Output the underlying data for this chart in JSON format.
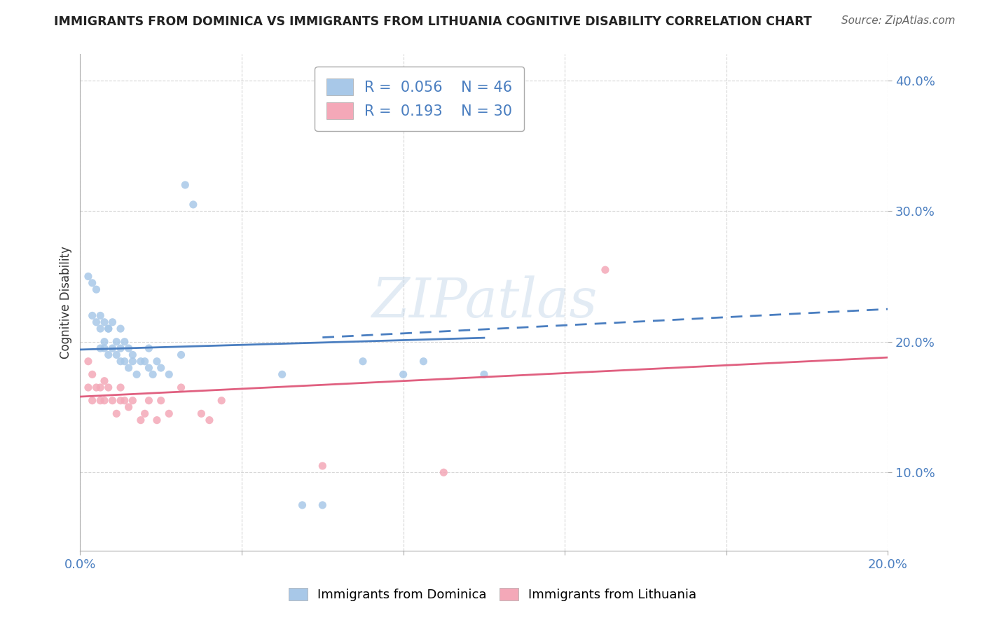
{
  "title": "IMMIGRANTS FROM DOMINICA VS IMMIGRANTS FROM LITHUANIA COGNITIVE DISABILITY CORRELATION CHART",
  "source": "Source: ZipAtlas.com",
  "ylabel": "Cognitive Disability",
  "xlim": [
    0.0,
    0.2
  ],
  "ylim": [
    0.04,
    0.42
  ],
  "xtick_positions": [
    0.0,
    0.04,
    0.08,
    0.12,
    0.16,
    0.2
  ],
  "ytick_positions": [
    0.1,
    0.2,
    0.3,
    0.4
  ],
  "R_dominica": 0.056,
  "N_dominica": 46,
  "R_lithuania": 0.193,
  "N_lithuania": 30,
  "color_dominica": "#a8c8e8",
  "color_lithuania": "#f4a8b8",
  "trendline_dominica": "#4a7ec0",
  "trendline_lithuania": "#e06080",
  "background_color": "#ffffff",
  "grid_color": "#cccccc",
  "watermark": "ZIPatlas",
  "dominica_points_x": [
    0.002,
    0.003,
    0.003,
    0.004,
    0.004,
    0.005,
    0.005,
    0.005,
    0.006,
    0.006,
    0.006,
    0.007,
    0.007,
    0.007,
    0.008,
    0.008,
    0.009,
    0.009,
    0.01,
    0.01,
    0.01,
    0.011,
    0.011,
    0.012,
    0.012,
    0.013,
    0.013,
    0.014,
    0.015,
    0.016,
    0.017,
    0.017,
    0.018,
    0.019,
    0.02,
    0.022,
    0.025,
    0.026,
    0.028,
    0.05,
    0.055,
    0.06,
    0.07,
    0.08,
    0.085,
    0.1
  ],
  "dominica_points_y": [
    0.25,
    0.22,
    0.245,
    0.24,
    0.215,
    0.21,
    0.195,
    0.22,
    0.2,
    0.195,
    0.215,
    0.21,
    0.19,
    0.21,
    0.195,
    0.215,
    0.2,
    0.19,
    0.195,
    0.185,
    0.21,
    0.2,
    0.185,
    0.195,
    0.18,
    0.185,
    0.19,
    0.175,
    0.185,
    0.185,
    0.18,
    0.195,
    0.175,
    0.185,
    0.18,
    0.175,
    0.19,
    0.32,
    0.305,
    0.175,
    0.075,
    0.075,
    0.185,
    0.175,
    0.185,
    0.175
  ],
  "lithuania_points_x": [
    0.002,
    0.002,
    0.003,
    0.003,
    0.004,
    0.005,
    0.005,
    0.006,
    0.006,
    0.007,
    0.008,
    0.009,
    0.01,
    0.01,
    0.011,
    0.012,
    0.013,
    0.015,
    0.016,
    0.017,
    0.019,
    0.02,
    0.022,
    0.025,
    0.03,
    0.032,
    0.035,
    0.06,
    0.09,
    0.13
  ],
  "lithuania_points_y": [
    0.165,
    0.185,
    0.155,
    0.175,
    0.165,
    0.165,
    0.155,
    0.155,
    0.17,
    0.165,
    0.155,
    0.145,
    0.155,
    0.165,
    0.155,
    0.15,
    0.155,
    0.14,
    0.145,
    0.155,
    0.14,
    0.155,
    0.145,
    0.165,
    0.145,
    0.14,
    0.155,
    0.105,
    0.1,
    0.255
  ],
  "trendline_dom_x0": 0.0,
  "trendline_dom_y0": 0.194,
  "trendline_dom_x1": 0.2,
  "trendline_dom_y1": 0.212,
  "trendline_dom_dashed_x1": 0.2,
  "trendline_dom_dashed_y1": 0.225,
  "trendline_lit_x0": 0.0,
  "trendline_lit_y0": 0.158,
  "trendline_lit_x1": 0.2,
  "trendline_lit_y1": 0.188
}
